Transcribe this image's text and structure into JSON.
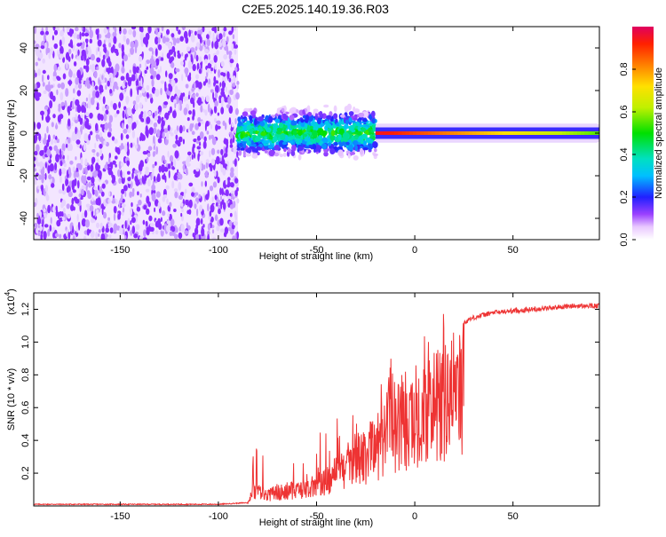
{
  "title": "C2E5.2025.140.19.36.R03",
  "chart_data": [
    {
      "type": "heatmap",
      "name": "spectrogram",
      "xlabel": "Height of straight line (km)",
      "ylabel": "Frequency (Hz)",
      "xlim": [
        -194,
        94
      ],
      "ylim": [
        -50,
        50
      ],
      "xticks": [
        -150,
        -100,
        -50,
        0,
        50
      ],
      "yticks": [
        -40,
        -20,
        0,
        20,
        40
      ],
      "colorbar": {
        "label": "Normalized spectral amplitude",
        "range": [
          0,
          1
        ],
        "ticks": [
          0.0,
          0.2,
          0.4,
          0.6,
          0.8
        ],
        "tick_labels": [
          "0.0",
          "0.2",
          "0.4",
          "0.6",
          "0.8"
        ]
      },
      "regions": [
        {
          "x_range": [
            -194,
            -90
          ],
          "description": "broadband noise",
          "amplitude": 0.12
        },
        {
          "x_range": [
            -90,
            -20
          ],
          "center_hz": 0,
          "width_hz": 8,
          "amplitude": 0.35
        },
        {
          "x_range": [
            -20,
            94
          ],
          "center_hz": 0,
          "width_hz": 3,
          "amplitude": 0.9
        }
      ]
    },
    {
      "type": "line",
      "name": "snr",
      "xlabel": "Height of straight line (km)",
      "ylabel": "SNR (10 * v/v)",
      "y_multiplier_label": "(x10",
      "y_multiplier_exp": "4",
      "y_multiplier_close": ")",
      "xlim": [
        -194,
        94
      ],
      "ylim": [
        0,
        1.3
      ],
      "xticks": [
        -150,
        -100,
        -50,
        0,
        50
      ],
      "yticks": [
        0.2,
        0.4,
        0.6,
        0.8,
        1.0,
        1.2
      ],
      "ytick_labels": [
        "0.2",
        "0.4",
        "0.6",
        "0.8",
        "1.0",
        "1.2"
      ],
      "color": "#ee3333",
      "series": [
        {
          "name": "SNR",
          "x": [
            -194,
            -150,
            -100,
            -85,
            -82,
            -75,
            -70,
            -60,
            -50,
            -45,
            -40,
            -35,
            -30,
            -25,
            -20,
            -15,
            -12,
            -10,
            -5,
            0,
            5,
            10,
            15,
            20,
            25,
            30,
            40,
            50,
            60,
            70,
            80,
            94
          ],
          "y": [
            0.01,
            0.01,
            0.01,
            0.02,
            0.15,
            0.1,
            0.14,
            0.15,
            0.2,
            0.25,
            0.3,
            0.38,
            0.45,
            0.52,
            0.55,
            0.65,
            0.95,
            0.75,
            0.8,
            0.75,
            0.85,
            0.95,
            1.02,
            1.08,
            1.12,
            1.15,
            1.18,
            1.19,
            1.2,
            1.21,
            1.22,
            1.22
          ]
        }
      ]
    }
  ]
}
